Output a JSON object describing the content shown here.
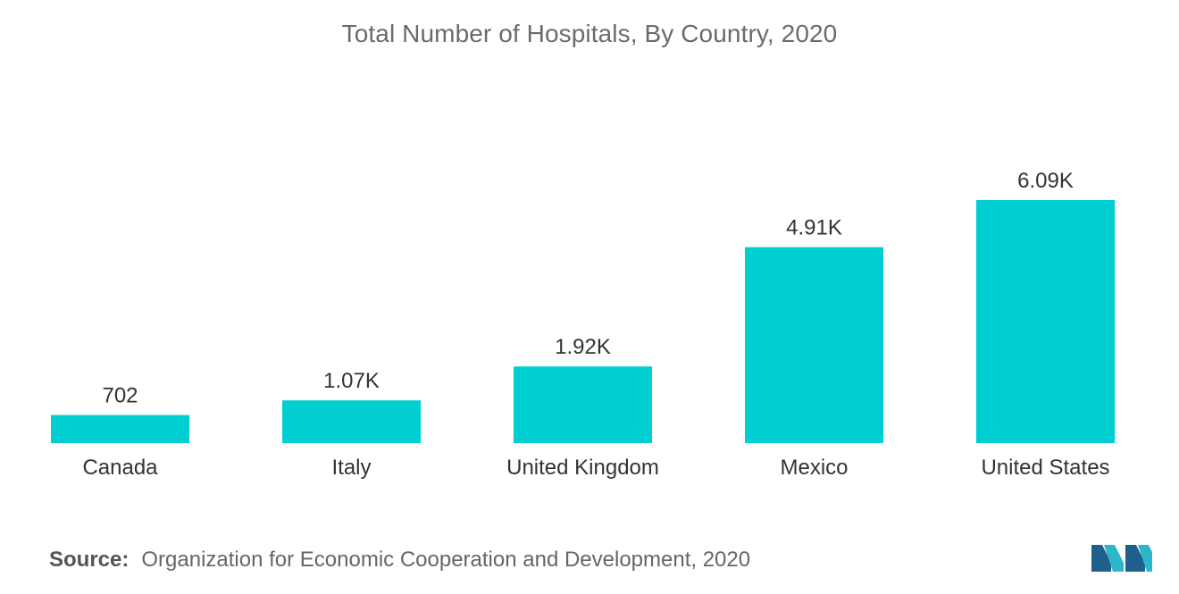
{
  "chart_data": {
    "type": "bar",
    "title": "Total Number of Hospitals, By Country, 2020",
    "categories": [
      "Canada",
      "Italy",
      "United Kingdom",
      "Mexico",
      "United States"
    ],
    "values": [
      702,
      1070,
      1920,
      4910,
      6090
    ],
    "value_labels": [
      "702",
      "1.07K",
      "1.92K",
      "4.91K",
      "6.09K"
    ],
    "xlabel": "",
    "ylabel": "",
    "ylim": [
      0,
      6090
    ],
    "grid": false,
    "bar_color": "#00cfd1"
  },
  "source": {
    "label": "Source:",
    "text": "Organization for Economic Cooperation and Development, 2020"
  },
  "logo": {
    "icon": "mordor-intelligence-logo-icon",
    "colors": [
      "#1f5f8b",
      "#2bb7c9"
    ]
  }
}
